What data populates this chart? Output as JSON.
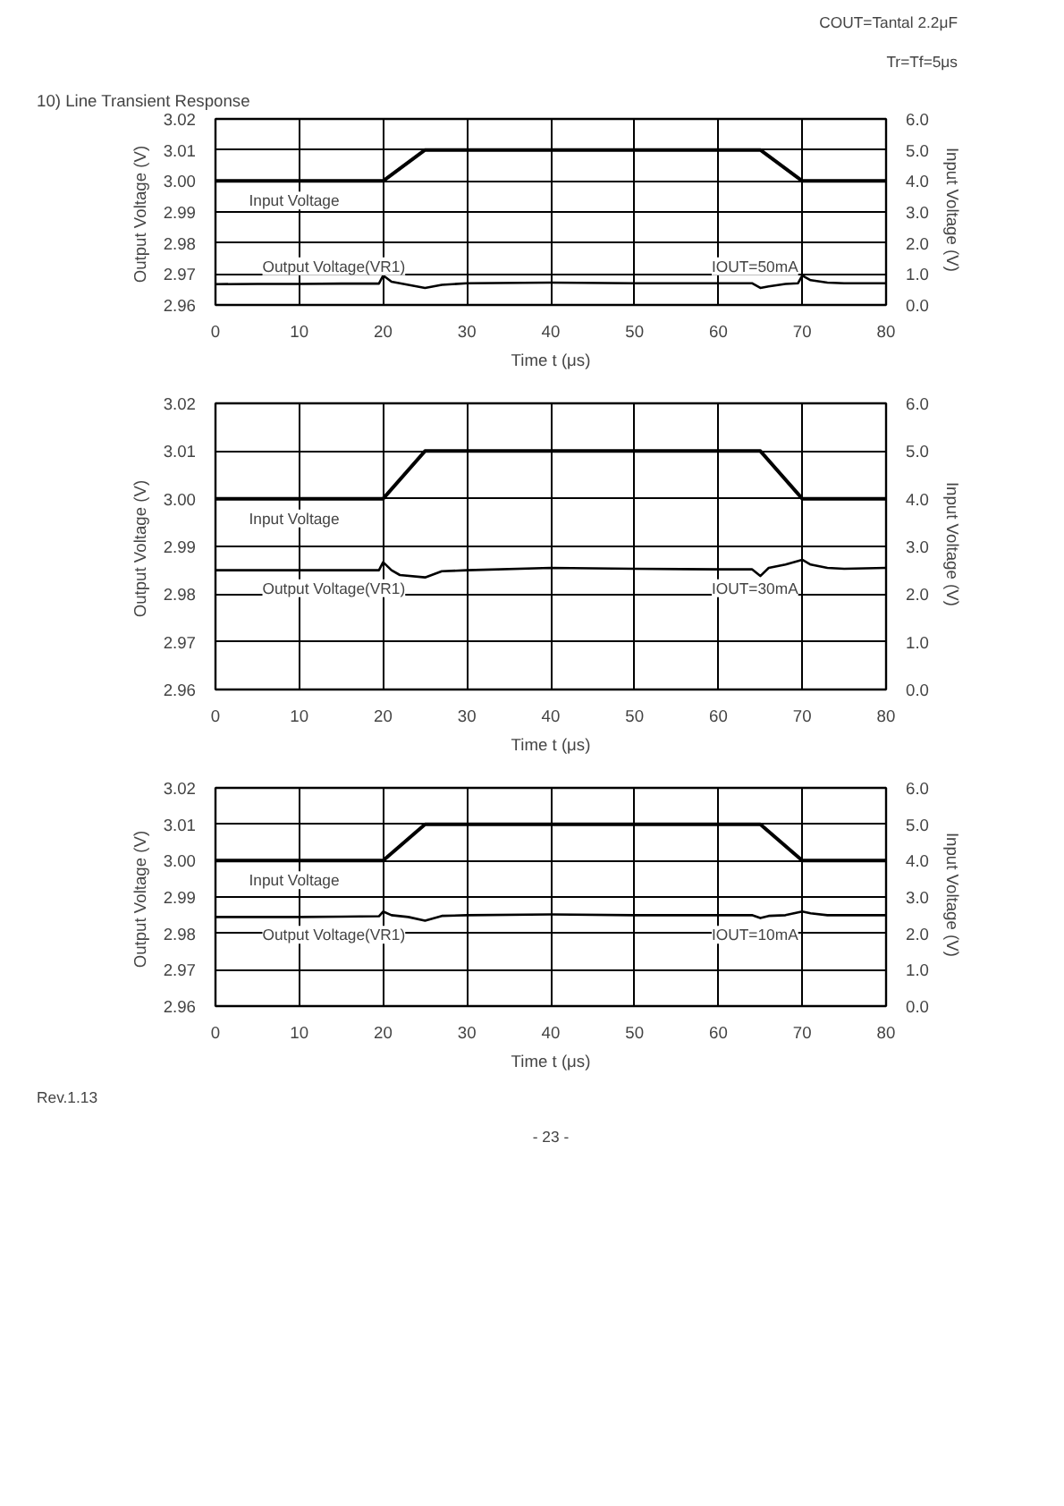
{
  "chart_data": [
    {
      "type": "line",
      "title": "10)  Line Transient Response",
      "xlabel": "Time t (μs)",
      "ylabel": "Output Voltage  (V)",
      "y2label": "Input Voltage  (V)",
      "annotations": [
        "IOUT=50mA",
        "Tr=Tf=5μs",
        "COUT=Tantal 2.2μF"
      ],
      "xlim": [
        0,
        80
      ],
      "ylim": [
        2.96,
        3.02
      ],
      "y2lim": [
        0,
        6
      ],
      "xticks": [
        0,
        10,
        20,
        30,
        40,
        50,
        60,
        70,
        80
      ],
      "yticks": [
        {
          "value": 2.96,
          "label": "2.96"
        },
        {
          "value": 2.97,
          "label": "2.97"
        },
        {
          "value": 2.98,
          "label": "2.98"
        },
        {
          "value": 2.99,
          "label": "2.99"
        },
        {
          "value": 3.0,
          "label": "3.00"
        },
        {
          "value": 3.01,
          "label": "3.01"
        },
        {
          "value": 3.02,
          "label": "3.02"
        }
      ],
      "y2ticks": [
        {
          "value": 0,
          "label": "0.0"
        },
        {
          "value": 1,
          "label": "1.0"
        },
        {
          "value": 2,
          "label": "2.0"
        },
        {
          "value": 3,
          "label": "3.0"
        },
        {
          "value": 4,
          "label": "4.0"
        },
        {
          "value": 5,
          "label": "5.0"
        },
        {
          "value": 6,
          "label": "6.0"
        }
      ],
      "grid": true,
      "series": [
        {
          "name": "Input Voltage",
          "color": "#000000",
          "axis": "y2",
          "x": [
            0,
            20,
            25,
            65,
            70,
            80
          ],
          "values": [
            4,
            4,
            5,
            5,
            4,
            4
          ]
        },
        {
          "name": "Output Voltage(VR1)",
          "color": "#000000",
          "x": [
            0,
            5,
            10,
            15,
            19.5,
            20,
            21,
            23,
            25,
            27,
            30,
            40,
            50,
            60,
            64,
            65,
            66,
            68,
            69.5,
            70,
            71,
            73,
            75,
            80
          ],
          "values": [
            2.9667,
            2.9668,
            2.9668,
            2.9669,
            2.9669,
            2.9695,
            2.9675,
            2.9665,
            2.9655,
            2.9665,
            2.967,
            2.9672,
            2.967,
            2.967,
            2.967,
            2.9655,
            2.966,
            2.9668,
            2.967,
            2.9695,
            2.968,
            2.9672,
            2.967,
            2.967
          ]
        }
      ]
    },
    {
      "type": "line",
      "xlabel": "Time t (μs)",
      "ylabel": "Output Voltage  (V)",
      "y2label": "Input Voltage  (V)",
      "annotations": [
        "IOUT=30mA"
      ],
      "xlim": [
        0,
        80
      ],
      "ylim": [
        2.96,
        3.02
      ],
      "y2lim": [
        0,
        6
      ],
      "xticks": [
        0,
        10,
        20,
        30,
        40,
        50,
        60,
        70,
        80
      ],
      "yticks": [
        {
          "value": 2.96,
          "label": "2.96"
        },
        {
          "value": 2.97,
          "label": "2.97"
        },
        {
          "value": 2.98,
          "label": "2.98"
        },
        {
          "value": 2.99,
          "label": "2.99"
        },
        {
          "value": 3.0,
          "label": "3.00"
        },
        {
          "value": 3.01,
          "label": "3.01"
        },
        {
          "value": 3.02,
          "label": "3.02"
        }
      ],
      "y2ticks": [
        {
          "value": 0,
          "label": "0.0"
        },
        {
          "value": 1,
          "label": "1.0"
        },
        {
          "value": 2,
          "label": "2.0"
        },
        {
          "value": 3,
          "label": "3.0"
        },
        {
          "value": 4,
          "label": "4.0"
        },
        {
          "value": 5,
          "label": "5.0"
        },
        {
          "value": 6,
          "label": "6.0"
        }
      ],
      "grid": true,
      "series": [
        {
          "name": "Input Voltage",
          "color": "#000000",
          "axis": "y2",
          "x": [
            0,
            20,
            25,
            65,
            70,
            80
          ],
          "values": [
            4,
            4,
            5,
            5,
            4,
            4
          ]
        },
        {
          "name": "Output Voltage(VR1)",
          "color": "#000000",
          "x": [
            0,
            5,
            10,
            15,
            19.5,
            20,
            21,
            22,
            25,
            27,
            30,
            40,
            50,
            60,
            64,
            65,
            66,
            68,
            70,
            71,
            73,
            75,
            80
          ],
          "values": [
            2.985,
            2.985,
            2.985,
            2.985,
            2.985,
            2.9867,
            2.985,
            2.984,
            2.9835,
            2.9848,
            2.985,
            2.9855,
            2.9853,
            2.9852,
            2.9852,
            2.9838,
            2.9855,
            2.9862,
            2.9872,
            2.9862,
            2.9855,
            2.9853,
            2.9855
          ]
        }
      ]
    },
    {
      "type": "line",
      "xlabel": "Time t (μs)",
      "ylabel": "Output Voltage  (V)",
      "y2label": "Input Voltage  (V)",
      "annotations": [
        "IOUT=10mA",
        "Rev.1.13",
        "- 23 -"
      ],
      "xlim": [
        0,
        80
      ],
      "ylim": [
        2.96,
        3.02
      ],
      "y2lim": [
        0,
        6
      ],
      "xticks": [
        0,
        10,
        20,
        30,
        40,
        50,
        60,
        70,
        80
      ],
      "yticks": [
        {
          "value": 2.96,
          "label": "2.96"
        },
        {
          "value": 2.97,
          "label": "2.97"
        },
        {
          "value": 2.98,
          "label": "2.98"
        },
        {
          "value": 2.99,
          "label": "2.99"
        },
        {
          "value": 3.0,
          "label": "3.00"
        },
        {
          "value": 3.01,
          "label": "3.01"
        },
        {
          "value": 3.02,
          "label": "3.02"
        }
      ],
      "y2ticks": [
        {
          "value": 0,
          "label": "0.0"
        },
        {
          "value": 1,
          "label": "1.0"
        },
        {
          "value": 2,
          "label": "2.0"
        },
        {
          "value": 3,
          "label": "3.0"
        },
        {
          "value": 4,
          "label": "4.0"
        },
        {
          "value": 5,
          "label": "5.0"
        },
        {
          "value": 6,
          "label": "6.0"
        }
      ],
      "grid": true,
      "series": [
        {
          "name": "Input Voltage",
          "color": "#000000",
          "axis": "y2",
          "x": [
            0,
            20,
            25,
            65,
            70,
            80
          ],
          "values": [
            4,
            4,
            5,
            5,
            4,
            4
          ]
        },
        {
          "name": "Output Voltage(VR1)",
          "color": "#000000",
          "x": [
            0,
            5,
            10,
            15,
            19.5,
            20,
            21,
            23,
            25,
            27,
            30,
            40,
            50,
            60,
            64,
            65,
            66,
            68,
            70,
            71,
            73,
            75,
            80
          ],
          "values": [
            2.9845,
            2.9845,
            2.9845,
            2.9846,
            2.9847,
            2.986,
            2.985,
            2.9845,
            2.9835,
            2.9848,
            2.985,
            2.9852,
            2.985,
            2.985,
            2.985,
            2.9842,
            2.9848,
            2.985,
            2.986,
            2.9855,
            2.985,
            2.985,
            2.985
          ]
        }
      ]
    }
  ]
}
